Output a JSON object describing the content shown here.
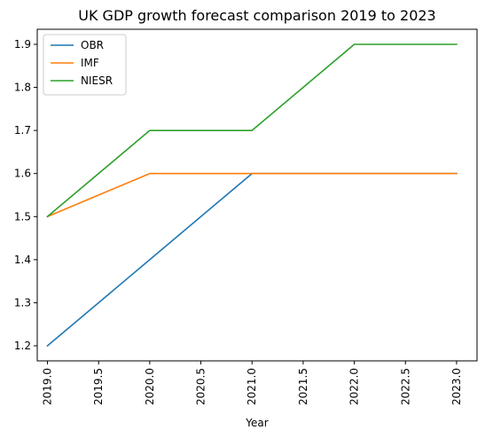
{
  "chart_data": {
    "type": "line",
    "title": "UK GDP growth forecast comparison 2019 to 2023",
    "xlabel": "Year",
    "ylabel": "",
    "x": [
      2019,
      2020,
      2021,
      2022,
      2023
    ],
    "xlim": [
      2018.9,
      2023.2
    ],
    "ylim": [
      1.165,
      1.935
    ],
    "xticks": [
      2019.0,
      2019.5,
      2020.0,
      2020.5,
      2021.0,
      2021.5,
      2022.0,
      2022.5,
      2023.0
    ],
    "xtick_labels": [
      "2019.0",
      "2019.5",
      "2020.0",
      "2020.5",
      "2021.0",
      "2021.5",
      "2022.0",
      "2022.5",
      "2023.0"
    ],
    "yticks": [
      1.2,
      1.3,
      1.4,
      1.5,
      1.6,
      1.7,
      1.8,
      1.9
    ],
    "ytick_labels": [
      "1.2",
      "1.3",
      "1.4",
      "1.5",
      "1.6",
      "1.7",
      "1.8",
      "1.9"
    ],
    "grid": false,
    "legend_position": "top-left",
    "series": [
      {
        "name": "OBR",
        "color": "#1f77b4",
        "values": [
          1.2,
          1.4,
          1.6,
          1.6,
          1.6
        ]
      },
      {
        "name": "IMF",
        "color": "#ff7f0e",
        "values": [
          1.5,
          1.6,
          1.6,
          1.6,
          1.6
        ]
      },
      {
        "name": "NIESR",
        "color": "#2ca02c",
        "values": [
          1.5,
          1.7,
          1.7,
          1.9,
          1.9
        ]
      }
    ]
  }
}
